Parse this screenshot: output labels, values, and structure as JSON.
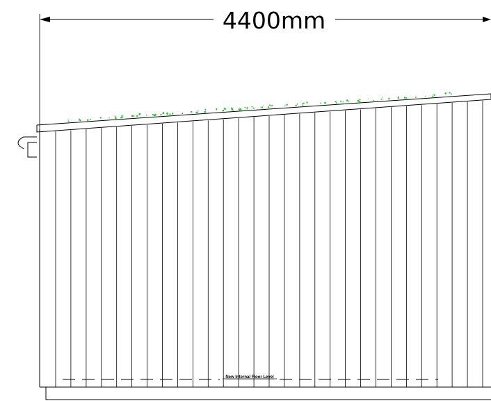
{
  "dimension": {
    "label": "4400mm"
  },
  "floor_level": {
    "label": "New Internal Floor Level"
  },
  "colors": {
    "line": "#000000",
    "green_roof": "#22c42a",
    "background": "#ffffff"
  },
  "cladding": {
    "board_count": 29
  }
}
